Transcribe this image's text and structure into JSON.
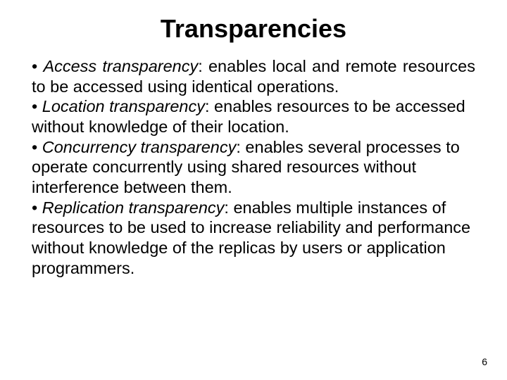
{
  "title": "Transparencies",
  "items": [
    {
      "term": "Access transparency",
      "definition": ": enables local and remote resources to be accessed using identical operations.",
      "justified": true
    },
    {
      "term": "Location transparency",
      "definition": ": enables resources to be accessed without knowledge of their location.",
      "justified": false
    },
    {
      "term": "Concurrency transparency",
      "definition": ": enables several processes to operate concurrently using shared resources without interference between them.",
      "justified": false
    },
    {
      "term": "Replication transparency",
      "definition": ": enables multiple instances of resources to be used to increase reliability and performance without knowledge of the replicas by users or application programmers.",
      "justified": false
    }
  ],
  "page_number": "6"
}
